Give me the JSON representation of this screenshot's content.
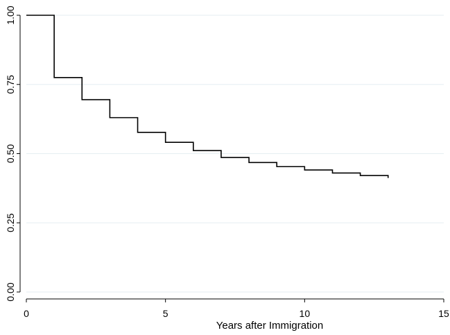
{
  "chart_data": {
    "type": "line",
    "step": true,
    "title": "",
    "xlabel": "Years after Immigration",
    "ylabel": "",
    "xlim": [
      0,
      15
    ],
    "ylim": [
      0,
      1
    ],
    "xticks": [
      0,
      5,
      10,
      15
    ],
    "xtick_labels": [
      "0",
      "5",
      "10",
      "15"
    ],
    "yticks": [
      0,
      0.25,
      0.5,
      0.75,
      1.0
    ],
    "ytick_labels": [
      "0.00",
      "0.25",
      "0.50",
      "0.75",
      "1.00"
    ],
    "grid": "horizontal",
    "legend": "none",
    "line_color": "#000000",
    "grid_color": "#e6eef2",
    "series": [
      {
        "x": [
          0,
          1,
          2,
          3,
          4,
          5,
          6,
          7,
          8,
          9,
          10,
          11,
          12,
          13
        ],
        "y": [
          1.0,
          0.775,
          0.695,
          0.63,
          0.577,
          0.541,
          0.511,
          0.486,
          0.468,
          0.453,
          0.441,
          0.43,
          0.421,
          0.412
        ]
      }
    ]
  }
}
